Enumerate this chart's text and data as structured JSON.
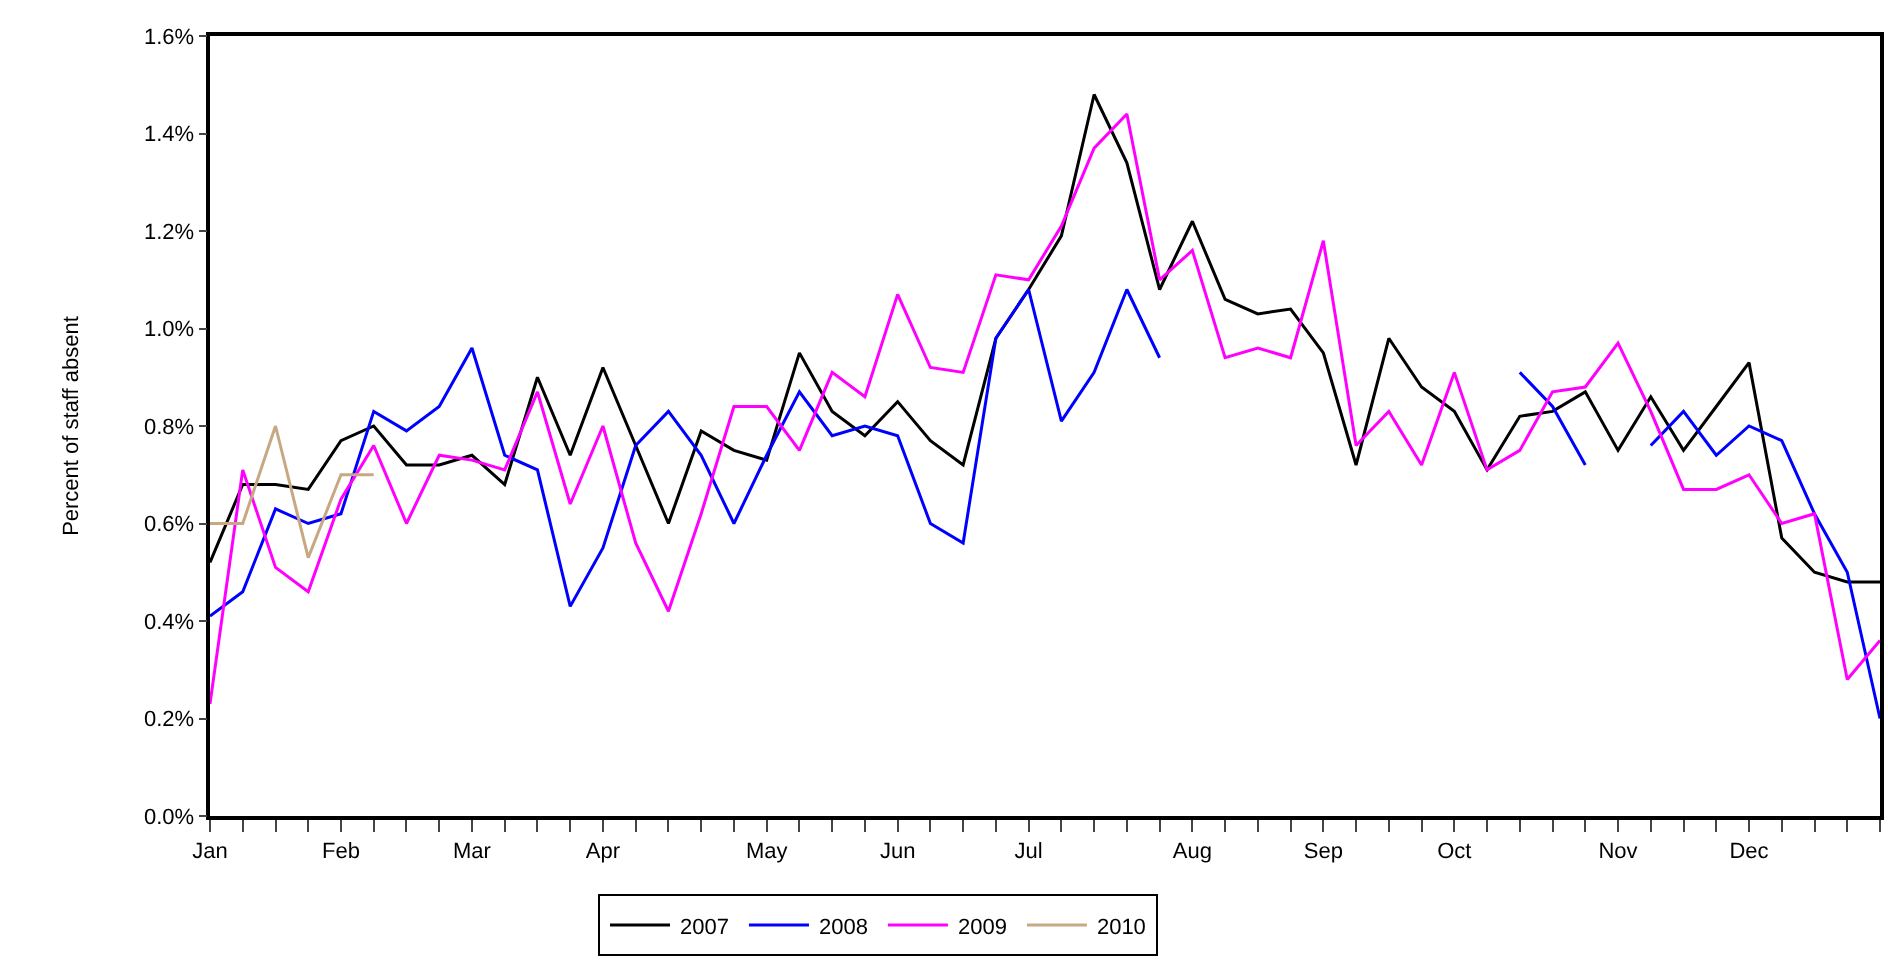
{
  "chart_data": {
    "type": "line",
    "ylabel": "Percent of staff absent",
    "categories": [
      "Jan",
      null,
      null,
      null,
      "Feb",
      null,
      null,
      null,
      "Mar",
      null,
      null,
      null,
      "Apr",
      null,
      null,
      null,
      null,
      "May",
      null,
      null,
      null,
      "Jun",
      null,
      null,
      null,
      "Jul",
      null,
      null,
      null,
      null,
      "Aug",
      null,
      null,
      null,
      "Sep",
      null,
      null,
      null,
      "Oct",
      null,
      null,
      null,
      null,
      "Nov",
      null,
      null,
      null,
      "Dec",
      null,
      null,
      null,
      null
    ],
    "series": [
      {
        "name": "2007",
        "color": "#000000",
        "values": [
          0.52,
          0.68,
          0.68,
          0.67,
          0.77,
          0.8,
          0.72,
          0.72,
          0.74,
          0.68,
          0.9,
          0.74,
          0.92,
          0.76,
          0.6,
          0.79,
          0.75,
          0.73,
          0.95,
          0.83,
          0.78,
          0.85,
          0.77,
          0.72,
          0.98,
          1.08,
          1.19,
          1.48,
          1.34,
          1.08,
          1.22,
          1.06,
          1.03,
          1.04,
          0.95,
          0.72,
          0.98,
          0.88,
          0.83,
          0.71,
          0.82,
          0.83,
          0.87,
          0.75,
          0.86,
          0.75,
          0.84,
          0.93,
          0.57,
          0.5,
          0.48,
          0.48
        ]
      },
      {
        "name": "2008",
        "color": "#0000ff",
        "values": [
          0.41,
          0.46,
          0.63,
          0.6,
          0.62,
          0.83,
          0.79,
          0.84,
          0.96,
          0.74,
          0.71,
          0.43,
          0.55,
          0.76,
          0.83,
          0.74,
          0.6,
          0.74,
          0.87,
          0.78,
          0.8,
          0.78,
          0.6,
          0.56,
          0.98,
          1.08,
          0.81,
          0.91,
          1.08,
          0.94,
          null,
          null,
          null,
          null,
          null,
          null,
          null,
          null,
          null,
          null,
          0.91,
          0.84,
          0.72,
          null,
          0.76,
          0.83,
          0.74,
          0.8,
          0.77,
          0.62,
          0.5,
          0.2
        ]
      },
      {
        "name": "2009",
        "color": "#ff00ff",
        "values": [
          0.23,
          0.71,
          0.51,
          0.46,
          0.65,
          0.76,
          0.6,
          0.74,
          0.73,
          0.71,
          0.87,
          0.64,
          0.8,
          0.56,
          0.42,
          0.62,
          0.84,
          0.84,
          0.75,
          0.91,
          0.86,
          1.07,
          0.92,
          0.91,
          1.11,
          1.1,
          1.21,
          1.37,
          1.44,
          1.1,
          1.16,
          0.94,
          0.96,
          0.94,
          1.18,
          0.76,
          0.83,
          0.72,
          0.91,
          0.71,
          0.75,
          0.87,
          0.88,
          0.97,
          0.83,
          0.67,
          0.67,
          0.7,
          0.6,
          0.62,
          0.28,
          0.36
        ]
      },
      {
        "name": "2010",
        "color": "#c8a882",
        "values": [
          0.6,
          0.6,
          0.8,
          0.53,
          0.7,
          0.7,
          null,
          null,
          null,
          null,
          null,
          null,
          null,
          null,
          null,
          null,
          null,
          null,
          null,
          null,
          null,
          null,
          null,
          null,
          null,
          null,
          null,
          null,
          null,
          null,
          null,
          null,
          null,
          null,
          null,
          null,
          null,
          null,
          null,
          null,
          null,
          null,
          null,
          null,
          null,
          null,
          null,
          null,
          null,
          null,
          null,
          null
        ]
      }
    ],
    "ylim": [
      0,
      1.6
    ],
    "yticks": [
      {
        "value": 0,
        "label": "0.0%"
      },
      {
        "value": 0.2,
        "label": "0.2%"
      },
      {
        "value": 0.4,
        "label": "0.4%"
      },
      {
        "value": 0.6,
        "label": "0.6%"
      },
      {
        "value": 0.8,
        "label": "0.8%"
      },
      {
        "value": 1.0,
        "label": "1.0%"
      },
      {
        "value": 1.2,
        "label": "1.2%"
      },
      {
        "value": 1.4,
        "label": "1.4%"
      },
      {
        "value": 1.6,
        "label": "1.6%"
      }
    ],
    "legend": "bottom",
    "marker": "none",
    "line_style": "solid"
  }
}
